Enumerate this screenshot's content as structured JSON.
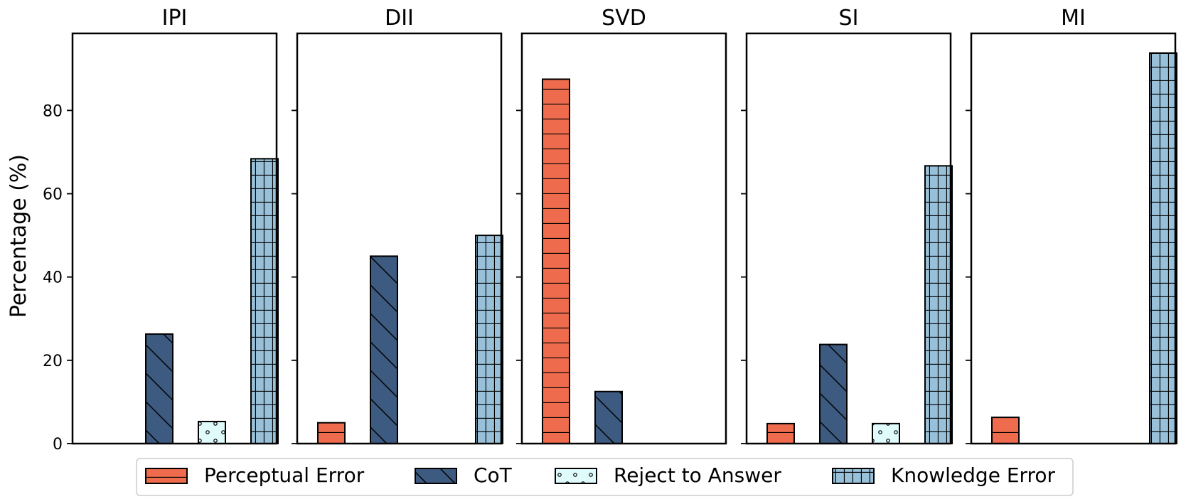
{
  "chart_data": {
    "type": "bar",
    "ylabel": "Percentage (%)",
    "ylim": [
      0,
      98.5
    ],
    "yticks": [
      0,
      20,
      40,
      60,
      80
    ],
    "grid": false,
    "legend_position": "bottom-center",
    "series": [
      {
        "name": "Perceptual Error",
        "color": "#ee6c4d",
        "hatch": "horizontal"
      },
      {
        "name": "CoT",
        "color": "#3d5a80",
        "hatch": "diagonal"
      },
      {
        "name": "Reject to Answer",
        "color": "#e0fbfc",
        "hatch": "dots"
      },
      {
        "name": "Knowledge Error",
        "color": "#98c1d9",
        "hatch": "grid"
      }
    ],
    "panels": [
      {
        "title": "IPI",
        "values": [
          0,
          26.3,
          5.3,
          68.4
        ]
      },
      {
        "title": "DII",
        "values": [
          5.0,
          45.0,
          0,
          50.0
        ]
      },
      {
        "title": "SVD",
        "values": [
          87.5,
          12.5,
          0,
          0
        ]
      },
      {
        "title": "SI",
        "values": [
          4.8,
          23.8,
          4.8,
          66.7
        ]
      },
      {
        "title": "MI",
        "values": [
          6.3,
          0,
          0,
          93.8
        ]
      }
    ]
  }
}
